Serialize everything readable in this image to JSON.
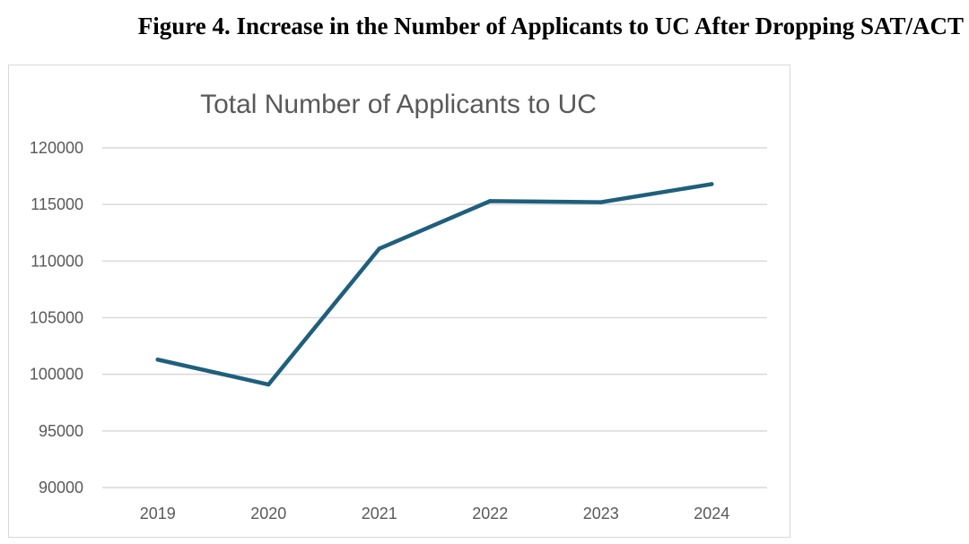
{
  "figure_caption": "Figure 4. Increase in the Number of Applicants to UC After Dropping SAT/ACT",
  "chart_data": {
    "type": "line",
    "title": "Total Number of Applicants to UC",
    "xlabel": "",
    "ylabel": "",
    "categories": [
      "2019",
      "2020",
      "2021",
      "2022",
      "2023",
      "2024"
    ],
    "series": [
      {
        "name": "Total Number of Applicants to UC",
        "values": [
          101300,
          99100,
          111100,
          115300,
          115200,
          116800
        ]
      }
    ],
    "ylim": [
      90000,
      120000
    ],
    "yticks": [
      90000,
      95000,
      100000,
      105000,
      110000,
      115000,
      120000
    ],
    "grid": true,
    "legend": "none",
    "line_color": "#1f5f7d",
    "grid_color": "#d9d9d9",
    "text_color": "#595959"
  }
}
